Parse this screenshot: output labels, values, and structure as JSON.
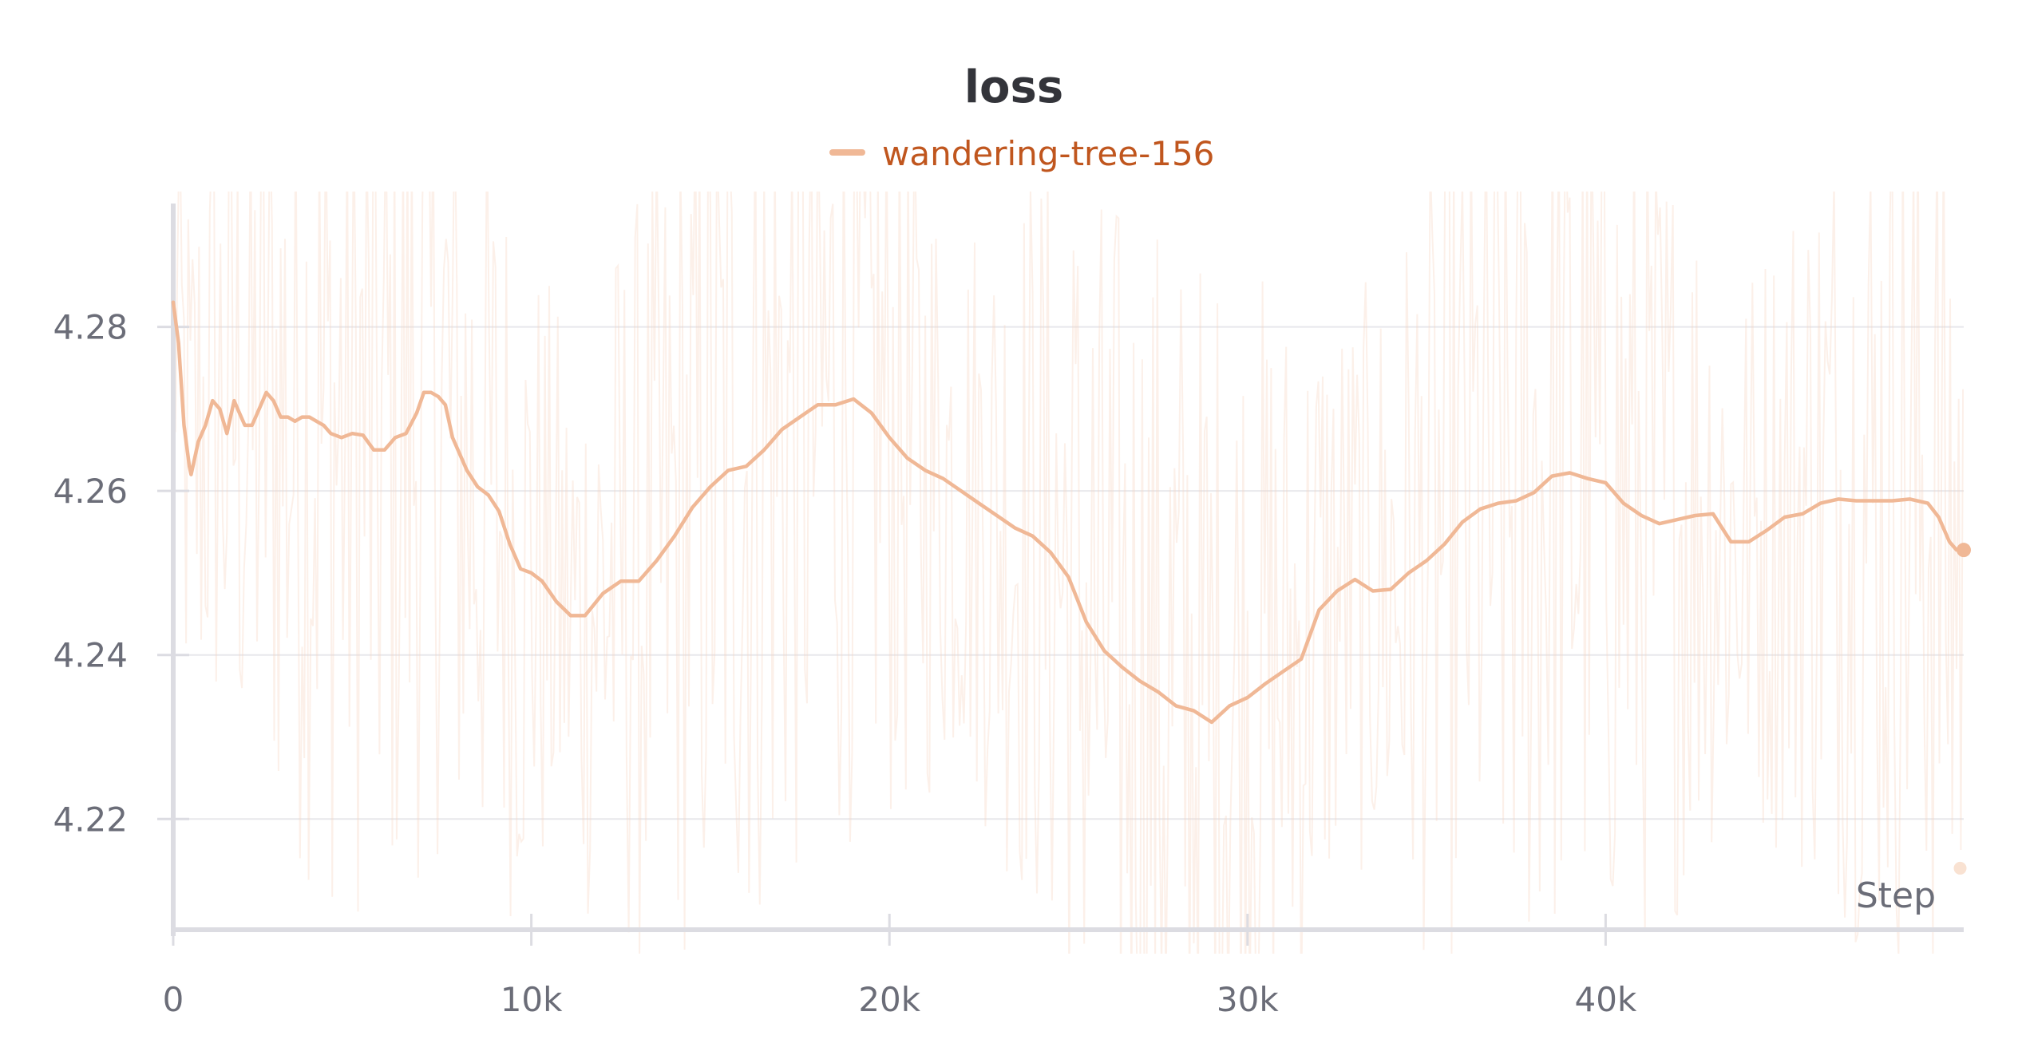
{
  "chart_data": {
    "type": "line",
    "title": "loss",
    "xlabel": "Step",
    "ylabel": "",
    "xlim": [
      0,
      50000
    ],
    "ylim": [
      4.2065,
      4.2965
    ],
    "xticks": [
      0,
      10000,
      20000,
      30000,
      40000
    ],
    "xtick_labels": [
      "0",
      "10k",
      "20k",
      "30k",
      "40k"
    ],
    "yticks": [
      4.22,
      4.24,
      4.26,
      4.28
    ],
    "ytick_labels": [
      "4.22",
      "4.24",
      "4.26",
      "4.28"
    ],
    "grid": true,
    "legend_position": "top-center",
    "series": [
      {
        "name": "wandering-tree-156",
        "color": "#f0b896",
        "raw_color": "#f7d5bf",
        "legend_text_color": "#c0561e",
        "smoothed": {
          "x": [
            0,
            150,
            300,
            450,
            500,
            700,
            900,
            1100,
            1300,
            1500,
            1700,
            1800,
            2000,
            2200,
            2400,
            2600,
            2800,
            3000,
            3200,
            3400,
            3600,
            3800,
            4000,
            4200,
            4400,
            4700,
            5000,
            5300,
            5600,
            5900,
            6200,
            6500,
            6800,
            7000,
            7200,
            7400,
            7600,
            7800,
            8000,
            8200,
            8500,
            8800,
            9100,
            9400,
            9700,
            10000,
            10300,
            10700,
            11100,
            11500,
            12000,
            12500,
            13000,
            13500,
            14000,
            14500,
            15000,
            15500,
            16000,
            16500,
            17000,
            17500,
            18000,
            18500,
            19000,
            19500,
            20000,
            20500,
            21000,
            21500,
            22000,
            22500,
            23000,
            23500,
            24000,
            24500,
            25000,
            25500,
            26000,
            26500,
            27000,
            27500,
            28000,
            28500,
            29000,
            29500,
            30000,
            30500,
            31000,
            31500,
            32000,
            32500,
            33000,
            33500,
            34000,
            34500,
            35000,
            35500,
            36000,
            36500,
            37000,
            37500,
            38000,
            38500,
            39000,
            39500,
            40000,
            40500,
            41000,
            41500,
            42000,
            42500,
            43000,
            43500,
            44000,
            44500,
            45000,
            45500,
            46000,
            46500,
            47000,
            47500,
            48000,
            48500,
            49000,
            49300,
            49600,
            49800,
            50000
          ],
          "y": [
            4.283,
            4.278,
            4.268,
            4.263,
            4.262,
            4.266,
            4.268,
            4.271,
            4.27,
            4.267,
            4.271,
            4.27,
            4.268,
            4.268,
            4.27,
            4.272,
            4.271,
            4.269,
            4.269,
            4.2685,
            4.269,
            4.269,
            4.2685,
            4.268,
            4.267,
            4.2665,
            4.267,
            4.2668,
            4.265,
            4.265,
            4.2665,
            4.267,
            4.2695,
            4.272,
            4.272,
            4.2715,
            4.2705,
            4.2665,
            4.2645,
            4.2625,
            4.2605,
            4.2595,
            4.2575,
            4.2535,
            4.2505,
            4.25,
            4.249,
            4.2465,
            4.2448,
            4.2448,
            4.2475,
            4.249,
            4.249,
            4.2515,
            4.2545,
            4.258,
            4.2605,
            4.2625,
            4.263,
            4.265,
            4.2675,
            4.269,
            4.2705,
            4.2705,
            4.2712,
            4.2695,
            4.2665,
            4.264,
            4.2625,
            4.2615,
            4.26,
            4.2585,
            4.257,
            4.2555,
            4.2545,
            4.2525,
            4.2495,
            4.244,
            4.2405,
            4.2385,
            4.2368,
            4.2355,
            4.2338,
            4.2332,
            4.2318,
            4.2338,
            4.2348,
            4.2365,
            4.238,
            4.2395,
            4.2455,
            4.2478,
            4.2492,
            4.2478,
            4.248,
            4.25,
            4.2515,
            4.2535,
            4.2562,
            4.2578,
            4.2585,
            4.2588,
            4.2598,
            4.2618,
            4.2622,
            4.2615,
            4.261,
            4.2585,
            4.257,
            4.256,
            4.2565,
            4.257,
            4.2572,
            4.2538,
            4.2538,
            4.2552,
            4.2568,
            4.2572,
            4.2585,
            4.259,
            4.2588,
            4.2588,
            4.2588,
            4.259,
            4.2585,
            4.2568,
            4.2538,
            4.2528,
            4.2528
          ]
        },
        "raw_low_marker": {
          "x": 49900,
          "y": 4.214
        }
      }
    ]
  }
}
